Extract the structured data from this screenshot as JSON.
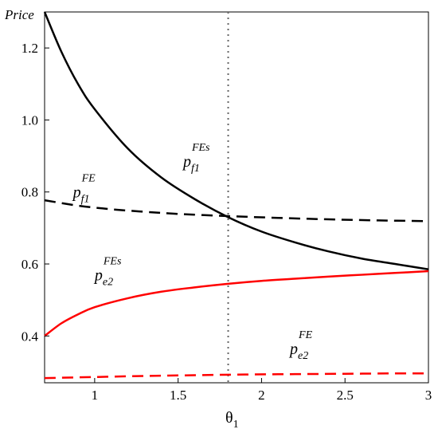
{
  "chart_data": {
    "type": "line",
    "title": "",
    "ylabel": "Price",
    "xlabel": {
      "base": "θ",
      "sub": "1"
    },
    "xlim": [
      0.7,
      3.0
    ],
    "ylim": [
      0.27,
      1.3
    ],
    "xticks": [
      1,
      1.5,
      2,
      2.5,
      3
    ],
    "xtick_labels": [
      "1",
      "1.5",
      "2",
      "2.5",
      "3"
    ],
    "yticks": [
      0.4,
      0.6,
      0.8,
      1.0,
      1.2
    ],
    "ytick_labels": [
      "0.4",
      "0.6",
      "0.8",
      "1.0",
      "1.2"
    ],
    "grid": false,
    "vline": {
      "x": 1.8,
      "style": "dotted",
      "color": "#666666"
    },
    "series": [
      {
        "name": "p_f1^FEs",
        "color": "#000000",
        "dash": "solid",
        "x": [
          0.7,
          0.8,
          0.9,
          1.0,
          1.2,
          1.4,
          1.6,
          1.8,
          2.0,
          2.2,
          2.4,
          2.6,
          2.8,
          3.0
        ],
        "y": [
          1.3,
          1.19,
          1.1,
          1.03,
          0.92,
          0.84,
          0.78,
          0.73,
          0.69,
          0.66,
          0.635,
          0.615,
          0.6,
          0.585
        ]
      },
      {
        "name": "p_f1^FE",
        "color": "#000000",
        "dash": "dashed",
        "x": [
          0.7,
          0.9,
          1.1,
          1.3,
          1.5,
          1.8,
          2.1,
          2.4,
          2.7,
          3.0
        ],
        "y": [
          0.777,
          0.762,
          0.752,
          0.745,
          0.739,
          0.733,
          0.728,
          0.724,
          0.721,
          0.719
        ]
      },
      {
        "name": "p_e2^FEs",
        "color": "#ff0000",
        "dash": "solid",
        "x": [
          0.7,
          0.8,
          0.9,
          1.0,
          1.2,
          1.4,
          1.6,
          1.8,
          2.0,
          2.2,
          2.4,
          2.6,
          2.8,
          3.0
        ],
        "y": [
          0.4,
          0.435,
          0.46,
          0.48,
          0.505,
          0.523,
          0.535,
          0.545,
          0.553,
          0.559,
          0.565,
          0.57,
          0.575,
          0.58
        ]
      },
      {
        "name": "p_e2^FE",
        "color": "#ff0000",
        "dash": "dashed",
        "x": [
          0.7,
          1.0,
          1.3,
          1.6,
          1.9,
          2.2,
          2.5,
          2.8,
          3.0
        ],
        "y": [
          0.283,
          0.286,
          0.289,
          0.291,
          0.293,
          0.294,
          0.295,
          0.296,
          0.296
        ]
      }
    ],
    "annotations": [
      {
        "base": "p",
        "sub": "f1",
        "sup": "FEs",
        "x": 1.53,
        "y": 0.87
      },
      {
        "base": "p",
        "sub": "f1",
        "sup": "FE",
        "x": 0.87,
        "y": 0.785
      },
      {
        "base": "p",
        "sub": "e2",
        "sup": "FEs",
        "x": 1.0,
        "y": 0.555
      },
      {
        "base": "p",
        "sub": "e2",
        "sup": "FE",
        "x": 2.17,
        "y": 0.35
      }
    ]
  }
}
